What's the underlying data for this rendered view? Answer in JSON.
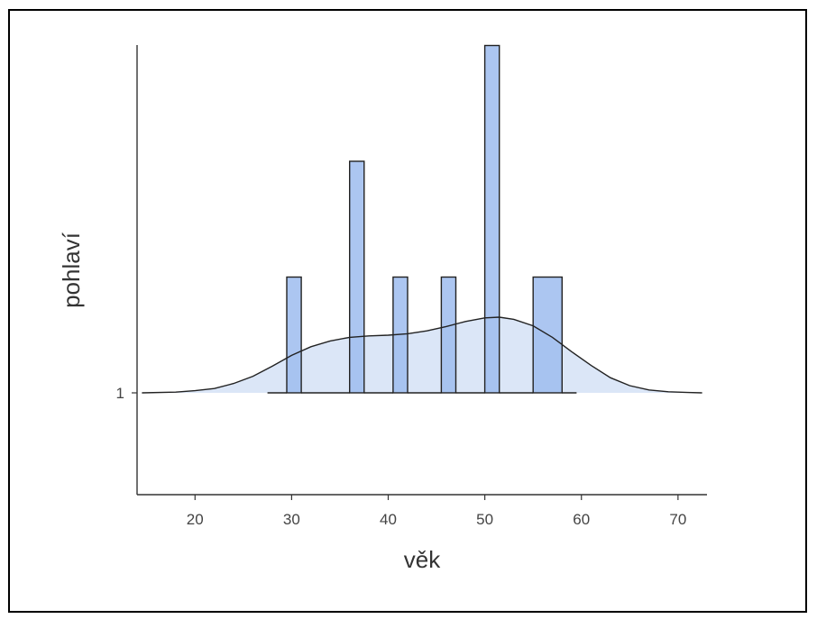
{
  "chart_data": {
    "type": "bar",
    "xlabel": "věk",
    "ylabel": "pohlaví",
    "xlim": [
      14,
      73
    ],
    "x_ticks": [
      20,
      30,
      40,
      50,
      60,
      70
    ],
    "y_categories": [
      "1"
    ],
    "bars": [
      {
        "x0": 29.5,
        "x1": 31.0,
        "count": 1
      },
      {
        "x0": 36.0,
        "x1": 37.5,
        "count": 2
      },
      {
        "x0": 40.5,
        "x1": 42.0,
        "count": 1
      },
      {
        "x0": 45.5,
        "x1": 47.0,
        "count": 1
      },
      {
        "x0": 50.0,
        "x1": 51.5,
        "count": 3
      },
      {
        "x0": 55.0,
        "x1": 58.0,
        "count": 1
      }
    ],
    "rug_range": [
      27.5,
      59.5
    ],
    "density": {
      "x": [
        14.5,
        18,
        20,
        22,
        24,
        26,
        28,
        30,
        32,
        34,
        36,
        38,
        40,
        42,
        44,
        46,
        48,
        50,
        51.5,
        53,
        55,
        57,
        59,
        61,
        63,
        65,
        67,
        69,
        71,
        72.5
      ],
      "y": [
        0.0,
        0.01,
        0.03,
        0.06,
        0.13,
        0.23,
        0.37,
        0.52,
        0.64,
        0.72,
        0.77,
        0.79,
        0.8,
        0.82,
        0.86,
        0.92,
        0.99,
        1.04,
        1.05,
        1.02,
        0.93,
        0.77,
        0.57,
        0.38,
        0.21,
        0.1,
        0.04,
        0.015,
        0.005,
        0.0
      ]
    },
    "colors": {
      "bar_fill": "#9dbcee",
      "density_fill": "#dbe6f7",
      "line": "#222222"
    }
  }
}
